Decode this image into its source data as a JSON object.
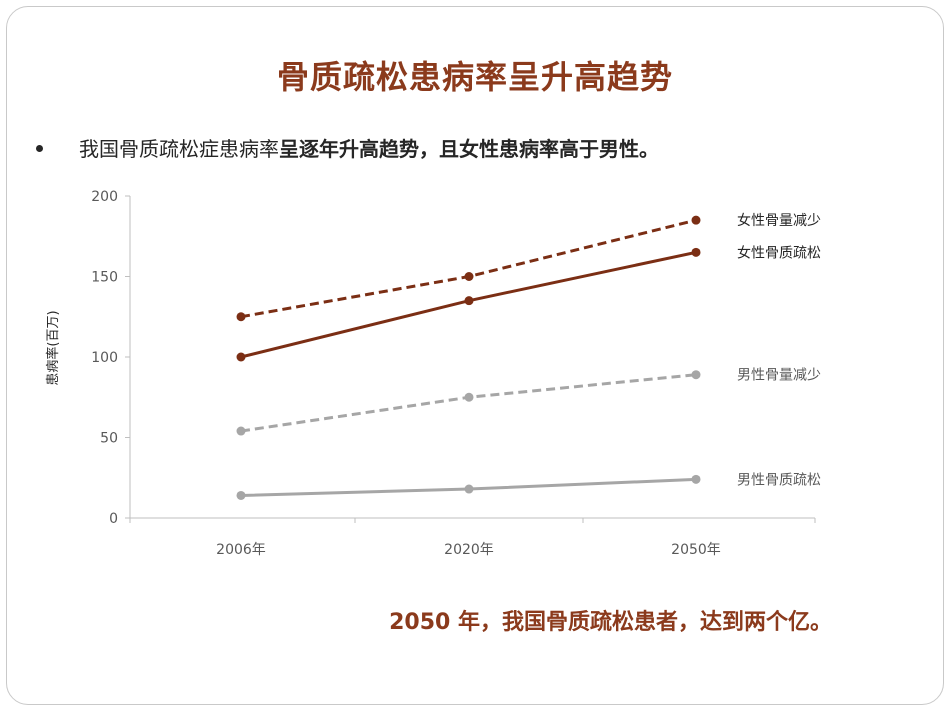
{
  "slide": {
    "title": "骨质疏松患病率呈升高趋势",
    "bullet_normal": "我国骨质疏松症患病率",
    "bullet_bold": "呈逐年升高趋势，且女性患病率高于男性。",
    "conclusion": "2050 年，我国骨质疏松患者，达到两个亿。"
  },
  "chart_data": {
    "type": "line",
    "categories": [
      "2006年",
      "2020年",
      "2050年"
    ],
    "ylabel": "患病率(百万)",
    "ylim": [
      0,
      200
    ],
    "yticks": [
      0,
      50,
      100,
      150,
      200
    ],
    "legend_placement": "right, at line ends",
    "series": [
      {
        "name": "女性骨量减少",
        "values": [
          125,
          150,
          185
        ],
        "color": "#7b2e14",
        "dashed": true
      },
      {
        "name": "女性骨质疏松",
        "values": [
          100,
          135,
          165
        ],
        "color": "#7b2e14",
        "dashed": false
      },
      {
        "name": "男性骨量减少",
        "values": [
          54,
          75,
          89
        ],
        "color": "#a6a6a6",
        "dashed": true
      },
      {
        "name": "男性骨质疏松",
        "values": [
          14,
          18,
          24
        ],
        "color": "#a6a6a6",
        "dashed": false
      }
    ]
  }
}
